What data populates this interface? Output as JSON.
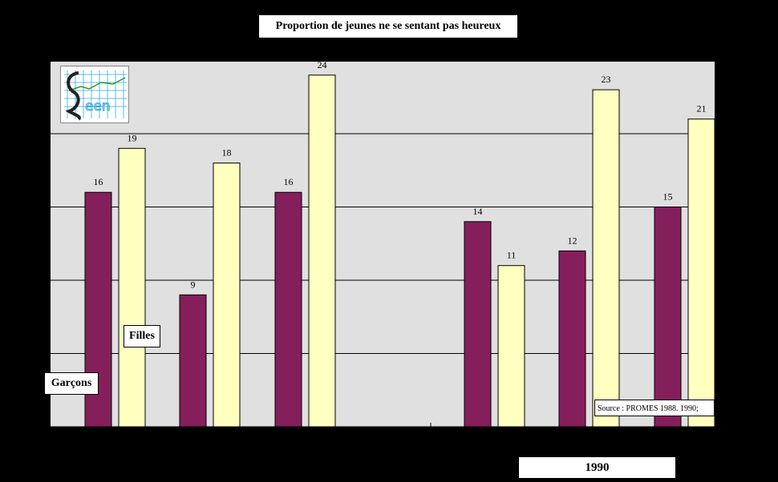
{
  "title": "Proportion de jeunes  ne se sentant pas heureux",
  "legend": {
    "boys": "Garçons",
    "girls": "Filles"
  },
  "source": "Source : PROMES 1988. 1990;",
  "year_label": "1990",
  "colors": {
    "boys": "#841F5C",
    "girls": "#FFFFC0",
    "plot_bg": "#E0E0E0",
    "page_bg": "#000000"
  },
  "chart_data": {
    "type": "bar",
    "title": "Proportion de jeunes  ne se sentant pas heureux",
    "xlabel": "",
    "ylabel": "",
    "ylim": [
      0,
      25
    ],
    "grid": true,
    "legend_placement": "inside-left",
    "categories": [
      "",
      "",
      "",
      "",
      "",
      ""
    ],
    "series": [
      {
        "name": "Garçons",
        "values": [
          16,
          9,
          16,
          14,
          12,
          15
        ]
      },
      {
        "name": "Filles",
        "values": [
          19,
          18,
          24,
          11,
          23,
          21
        ]
      }
    ]
  }
}
